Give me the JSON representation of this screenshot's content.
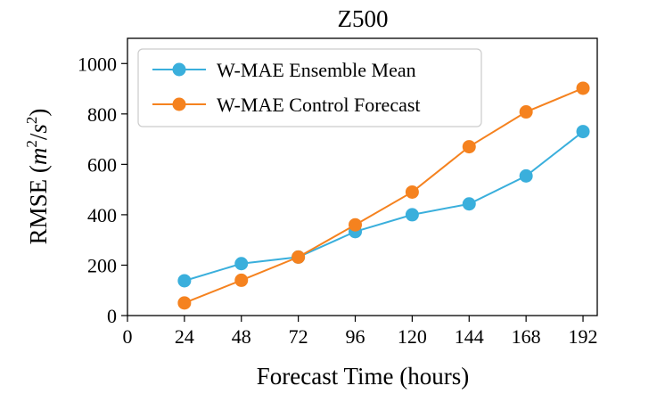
{
  "chart_data": {
    "type": "line",
    "title": "Z500",
    "xlabel": "Forecast Time (hours)",
    "ylabel_text": "RMSE (",
    "ylabel_units_base": "m",
    "ylabel_units_exp1": "2",
    "ylabel_units_slash": "/",
    "ylabel_units_base2": "s",
    "ylabel_units_exp2": "2",
    "ylabel_close": ")",
    "xlim": [
      0,
      198
    ],
    "ylim": [
      0,
      1100
    ],
    "xticks": [
      0,
      24,
      48,
      72,
      96,
      120,
      144,
      168,
      192
    ],
    "yticks": [
      0,
      200,
      400,
      600,
      800,
      1000
    ],
    "x": [
      24,
      48,
      72,
      96,
      120,
      144,
      168,
      192
    ],
    "series": [
      {
        "name": "W-MAE Ensemble Mean",
        "color": "#3aafdc",
        "values": [
          138,
          206,
          232,
          333,
          400,
          443,
          554,
          730
        ]
      },
      {
        "name": "W-MAE Control Forecast",
        "color": "#f5821f",
        "values": [
          50,
          140,
          232,
          360,
          490,
          670,
          808,
          902
        ]
      }
    ],
    "legend_position": "top-left"
  }
}
